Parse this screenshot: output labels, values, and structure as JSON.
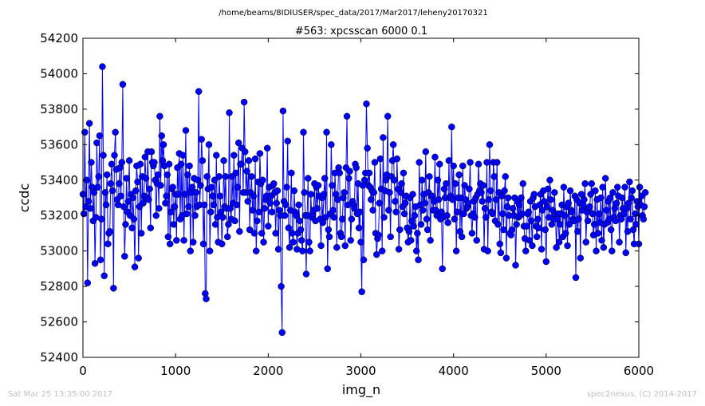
{
  "header": {
    "path": "/home/beams/8IDIUSER/spec_data/2017/Mar2017/leheny20170321"
  },
  "footer": {
    "timestamp": "Sat Mar 25 13:35:00 2017",
    "credit": "spec2nexus, (C) 2014-2017"
  },
  "chart_data": {
    "type": "line",
    "title": "#563: xpcsscan 6000 0.1",
    "xlabel": "img_n",
    "ylabel": "ccdc",
    "xlim": [
      0,
      6000
    ],
    "ylim": [
      52400,
      54200
    ],
    "xticks": [
      "0",
      "1000",
      "2000",
      "3000",
      "4000",
      "5000",
      "6000"
    ],
    "yticks": [
      "52400",
      "52600",
      "52800",
      "53000",
      "53200",
      "53400",
      "53600",
      "53800",
      "54000",
      "54200"
    ],
    "grid": false,
    "legend": "none",
    "series_color": "#0000ff",
    "x_start": 0,
    "x_step": 10,
    "series": [
      {
        "values": [
          53320,
          53210,
          53670,
          53250,
          53400,
          52820,
          53280,
          53720,
          53240,
          53500,
          53360,
          53170,
          53330,
          52930,
          53190,
          53610,
          53360,
          53420,
          53650,
          52950,
          53180,
          54040,
          53540,
          52860,
          53330,
          53260,
          53430,
          53040,
          53100,
          53110,
          53380,
          53490,
          53340,
          52790,
          53540,
          53670,
          53460,
          53290,
          53260,
          53380,
          53470,
          53310,
          53500,
          53940,
          53250,
          52970,
          53150,
          53410,
          53220,
          53280,
          53510,
          53200,
          53320,
          53130,
          53300,
          53180,
          52910,
          53340,
          53480,
          53390,
          52960,
          53250,
          53490,
          53100,
          53420,
          53270,
          53310,
          53530,
          53410,
          53300,
          53560,
          53290,
          53350,
          53130,
          53560,
          53500,
          53480,
          53500,
          53400,
          53200,
          53380,
          53430,
          53240,
          53760,
          53370,
          53650,
          53510,
          53600,
          53480,
          53270,
          53310,
          53430,
          53080,
          53490,
          53040,
          53220,
          53350,
          53360,
          53150,
          53250,
          53320,
          53060,
          53470,
          53320,
          53550,
          53180,
          53490,
          53200,
          53540,
          53060,
          53320,
          53680,
          53210,
          53430,
          53250,
          53480,
          53000,
          53330,
          53360,
          53050,
          53410,
          53200,
          53330,
          53250,
          53400,
          53900,
          53260,
          53370,
          53630,
          53510,
          53040,
          53260,
          52760,
          52730,
          53420,
          53350,
          53600,
          53000,
          53220,
          53360,
          53310,
          53260,
          53400,
          53150,
          53540,
          53190,
          53050,
          53420,
          53310,
          53220,
          53040,
          53190,
          53510,
          53250,
          53420,
          53240,
          53080,
          53150,
          53780,
          53240,
          53180,
          53420,
          53270,
          53540,
          53170,
          53440,
          53260,
          53360,
          53610,
          53110,
          53490,
          53490,
          53580,
          53330,
          53840,
          53560,
          53330,
          53450,
          53280,
          53510,
          53120,
          53330,
          53420,
          53230,
          53310,
          53100,
          53520,
          53000,
          53170,
          53390,
          53220,
          53550,
          53380,
          53100,
          53400,
          53050,
          53240,
          53290,
          53310,
          53580,
          53140,
          53360,
          53270,
          53310,
          53220,
          53370,
          53380,
          53330,
          53100,
          53270,
          53340,
          53010,
          53230,
          53200,
          52800,
          52540,
          53790,
          53280,
          53200,
          53260,
          53360,
          53620,
          53130,
          53020,
          53230,
          53440,
          53100,
          53050,
          53340,
          53220,
          53200,
          53010,
          53100,
          53260,
          53170,
          53120,
          53060,
          53000,
          53670,
          53330,
          53200,
          52870,
          53200,
          53410,
          53050,
          53000,
          53320,
          53190,
          53210,
          53230,
          53380,
          53170,
          53360,
          53240,
          53370,
          53310,
          53180,
          53030,
          53300,
          53160,
          53320,
          53410,
          53190,
          53670,
          52900,
          53120,
          53080,
          53210,
          53600,
          53370,
          53230,
          53190,
          53440,
          53320,
          53020,
          53290,
          53470,
          53440,
          53100,
          53080,
          53180,
          53300,
          53330,
          53030,
          53470,
          53760,
          53260,
          53410,
          53450,
          53060,
          53180,
          53280,
          53260,
          53240,
          53490,
          53470,
          53210,
          53380,
          53130,
          53220,
          53050,
          52770,
          53370,
          52950,
          53400,
          53440,
          53830,
          53580,
          53370,
          53440,
          53360,
          53290,
          53340,
          53230,
          53330,
          53500,
          53100,
          52980,
          53070,
          53090,
          53270,
          53520,
          53350,
          53000,
          53640,
          53190,
          53340,
          53400,
          53430,
          53760,
          53230,
          53330,
          53080,
          53420,
          53510,
          53600,
          53400,
          53280,
          53220,
          53520,
          53350,
          53010,
          53120,
          53330,
          53380,
          53250,
          53440,
          53210,
          53270,
          53310,
          53130,
          53050,
          53110,
          53300,
          53060,
          53170,
          53320,
          53140,
          53200,
          53250,
          53000,
          53100,
          52950,
          53500,
          53260,
          53150,
          53400,
          53230,
          53320,
          53270,
          53560,
          53180,
          53120,
          53330,
          53420,
          53060,
          53310,
          53310,
          53230,
          53280,
          53530,
          53230,
          53200,
          53400,
          53290,
          53490,
          53180,
          53220,
          52900,
          53190,
          53350,
          53300,
          53380,
          53200,
          53160,
          53510,
          53300,
          53310,
          53700,
          53290,
          53480,
          53180,
          53380,
          53000,
          53220,
          53300,
          53430,
          53110,
          53300,
          53080,
          53480,
          53210,
          53370,
          53290,
          53240,
          53250,
          53270,
          53350,
          53500,
          53200,
          53100,
          53210,
          53280,
          53190,
          53300,
          53060,
          53320,
          53490,
          53340,
          53380,
          53330,
          53280,
          53370,
          53010,
          53240,
          53190,
          53500,
          53000,
          53290,
          53600,
          53340,
          53220,
          53210,
          53500,
          53420,
          53170,
          53290,
          53500,
          53150,
          53330,
          53040,
          52990,
          53310,
          53210,
          53120,
          53340,
          53420,
          52960,
          53250,
          53300,
          53200,
          53100,
          53090,
          53120,
          53240,
          53200,
          53300,
          52920,
          53150,
          53280,
          53190,
          53260,
          53200,
          53300,
          53210,
          53380,
          53140,
          53070,
          53000,
          53140,
          53210,
          53220,
          53060,
          53280,
          53170,
          53030,
          53300,
          53320,
          53250,
          53140,
          53080,
          53180,
          53130,
          53260,
          53320,
          53010,
          53230,
          53340,
          53280,
          53120,
          52940,
          53250,
          53350,
          53190,
          53400,
          53290,
          53150,
          53230,
          53180,
          53330,
          53210,
          53020,
          53180,
          53210,
          53050,
          53150,
          53210,
          53260,
          53080,
          53360,
          53200,
          53100,
          53250,
          53030,
          53270,
          53150,
          53340,
          53230,
          53220,
          53180,
          53170,
          53310,
          52850,
          53290,
          53110,
          53180,
          53270,
          52960,
          53320,
          53230,
          53260,
          53290,
          53380,
          53050,
          53220,
          53170,
          53240,
          53250,
          53320,
          53380,
          53210,
          53090,
          53150,
          53340,
          53000,
          53290,
          53100,
          53210,
          53160,
          53300,
          53060,
          53360,
          53020,
          53150,
          53410,
          53230,
          53160,
          53280,
          53180,
          53300,
          53120,
          53000,
          53330,
          53190,
          53240,
          53170,
          53270,
          53360,
          53310,
          53050,
          53200,
          53180,
          53300,
          53240,
          53210,
          53360,
          52990,
          53240,
          53110,
          53270,
          53390,
          53180,
          53300,
          53340,
          53120,
          53040,
          53210,
          53150,
          53280,
          53250,
          53040,
          53360,
          53260,
          53310,
          53200,
          53180,
          53250,
          53330
        ]
      }
    ]
  }
}
